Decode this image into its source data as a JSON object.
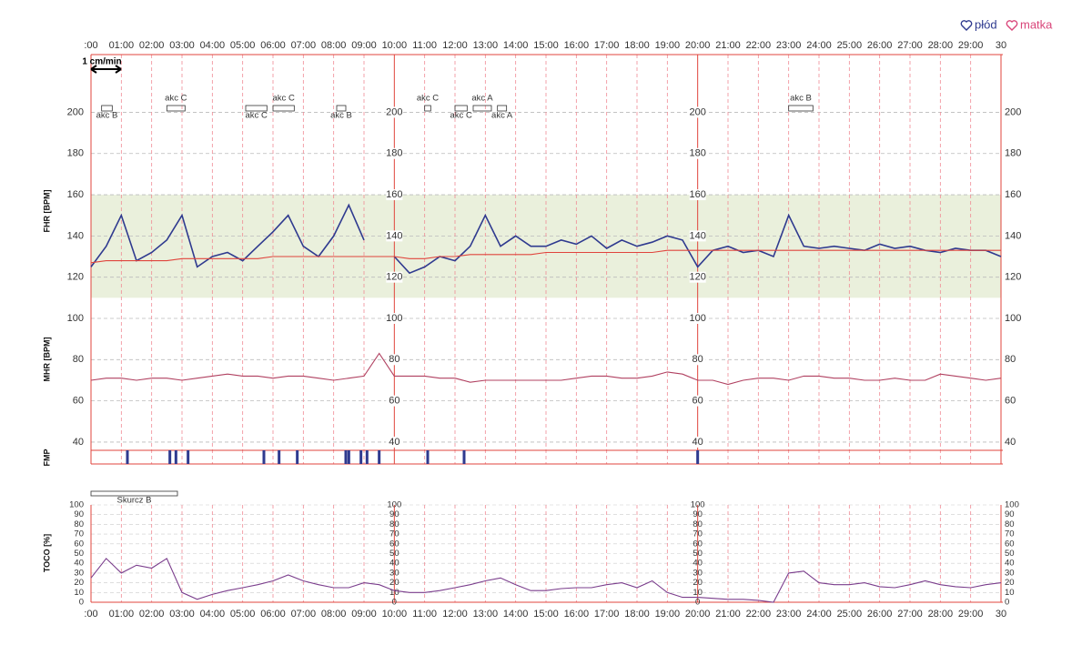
{
  "legend": [
    "płód",
    "matka"
  ],
  "chart_data": [
    {
      "type": "line",
      "ylabels": [
        "FHR [BPM]",
        "MHR [BPM]"
      ],
      "scale_note": "1 cm/min",
      "x": [
        0,
        0.5,
        1,
        1.5,
        2,
        2.5,
        3,
        3.5,
        4,
        4.5,
        5,
        5.5,
        6,
        6.5,
        7,
        7.5,
        8,
        8.5,
        9,
        9.5,
        10,
        10.5,
        11,
        11.5,
        12,
        12.5,
        13,
        13.5,
        14,
        14.5,
        15,
        15.5,
        16,
        16.5,
        17,
        17.5,
        18,
        18.5,
        19,
        19.5,
        20,
        20.5,
        21,
        21.5,
        22,
        22.5,
        23,
        23.5,
        24,
        24.5,
        25,
        25.5,
        26,
        26.5,
        27,
        27.5,
        28,
        28.5,
        29,
        29.5,
        30
      ],
      "xlim": [
        0,
        30
      ],
      "xticks": [
        {
          "value": 0,
          "label": ":00"
        },
        {
          "value": 1,
          "label": "01:00"
        },
        {
          "value": 2,
          "label": "02:00"
        },
        {
          "value": 3,
          "label": "03:00"
        },
        {
          "value": 4,
          "label": "04:00"
        },
        {
          "value": 5,
          "label": "05:00"
        },
        {
          "value": 6,
          "label": "06:00"
        },
        {
          "value": 7,
          "label": "07:00"
        },
        {
          "value": 8,
          "label": "08:00"
        },
        {
          "value": 9,
          "label": "09:00"
        },
        {
          "value": 10,
          "label": "10:00"
        },
        {
          "value": 11,
          "label": "11:00"
        },
        {
          "value": 12,
          "label": "12:00"
        },
        {
          "value": 13,
          "label": "13:00"
        },
        {
          "value": 14,
          "label": "14:00"
        },
        {
          "value": 15,
          "label": "15:00"
        },
        {
          "value": 16,
          "label": "16:00"
        },
        {
          "value": 17,
          "label": "17:00"
        },
        {
          "value": 18,
          "label": "18:00"
        },
        {
          "value": 19,
          "label": "19:00"
        },
        {
          "value": 20,
          "label": "20:00"
        },
        {
          "value": 21,
          "label": "21:00"
        },
        {
          "value": 22,
          "label": "22:00"
        },
        {
          "value": 23,
          "label": "23:00"
        },
        {
          "value": 24,
          "label": "24:00"
        },
        {
          "value": 25,
          "label": "25:00"
        },
        {
          "value": 26,
          "label": "26:00"
        },
        {
          "value": 27,
          "label": "27:00"
        },
        {
          "value": 28,
          "label": "28:00"
        },
        {
          "value": 29,
          "label": "29:00"
        },
        {
          "value": 30,
          "label": "30"
        }
      ],
      "label_columns": [
        0,
        10,
        20,
        30
      ],
      "ylim": [
        36,
        228
      ],
      "yticks": [
        200,
        180,
        160,
        140,
        120,
        100,
        80,
        60,
        40
      ],
      "band": [
        110,
        160
      ],
      "band_color": "#eaf0dc",
      "series": [
        {
          "name": "FHR",
          "color": "#2f3a8f",
          "values": [
            125,
            135,
            150,
            128,
            132,
            138,
            150,
            125,
            130,
            132,
            128,
            135,
            142,
            150,
            135,
            130,
            140,
            155,
            138,
            null,
            130,
            122,
            125,
            130,
            128,
            135,
            150,
            135,
            140,
            135,
            135,
            138,
            136,
            140,
            134,
            138,
            135,
            137,
            140,
            138,
            125,
            133,
            135,
            132,
            133,
            130,
            150,
            135,
            134,
            135,
            134,
            133,
            136,
            134,
            135,
            133,
            132,
            134,
            133,
            133,
            130
          ]
        },
        {
          "name": "FHR baseline",
          "color": "#e0443c",
          "values": [
            127,
            128,
            128,
            128,
            128,
            128,
            129,
            129,
            129,
            129,
            129,
            129,
            130,
            130,
            130,
            130,
            130,
            130,
            130,
            130,
            130,
            129,
            129,
            130,
            130,
            131,
            131,
            131,
            131,
            131,
            132,
            132,
            132,
            132,
            132,
            132,
            132,
            132,
            133,
            133,
            133,
            133,
            133,
            133,
            133,
            133,
            133,
            133,
            133,
            133,
            133,
            133,
            133,
            133,
            133,
            133,
            133,
            133,
            133,
            133,
            133
          ]
        },
        {
          "name": "MHR",
          "color": "#b04060",
          "values": [
            70,
            71,
            71,
            70,
            71,
            71,
            70,
            71,
            72,
            73,
            72,
            72,
            71,
            72,
            72,
            71,
            70,
            71,
            72,
            83,
            72,
            72,
            72,
            71,
            71,
            69,
            70,
            70,
            70,
            70,
            70,
            70,
            71,
            72,
            72,
            71,
            71,
            72,
            74,
            73,
            70,
            70,
            68,
            70,
            71,
            71,
            70,
            72,
            72,
            71,
            71,
            70,
            70,
            71,
            70,
            70,
            73,
            72,
            71,
            70,
            71
          ]
        }
      ],
      "annotations": [
        {
          "label": "akc B",
          "start": 0.35,
          "end": 0.7,
          "pos": "below"
        },
        {
          "label": "akc C",
          "start": 2.5,
          "end": 3.1,
          "pos": "above"
        },
        {
          "label": "akc C",
          "start": 5.1,
          "end": 5.8,
          "pos": "below"
        },
        {
          "label": "akc C",
          "start": 6.0,
          "end": 6.7,
          "pos": "above"
        },
        {
          "label": "akc B",
          "start": 8.1,
          "end": 8.4,
          "pos": "below"
        },
        {
          "label": "akc C",
          "start": 11.0,
          "end": 11.2,
          "pos": "above"
        },
        {
          "label": "akc C",
          "start": 12.0,
          "end": 12.4,
          "pos": "below"
        },
        {
          "label": "akc A",
          "start": 12.6,
          "end": 13.2,
          "pos": "above"
        },
        {
          "label": "akc A",
          "start": 13.4,
          "end": 13.7,
          "pos": "below"
        },
        {
          "label": "akc B",
          "start": 23.0,
          "end": 23.8,
          "pos": "above"
        }
      ]
    },
    {
      "type": "events",
      "ylabel": "FMP",
      "color": "#2f3a8f",
      "times": [
        1.2,
        2.6,
        2.8,
        3.2,
        5.7,
        6.2,
        6.8,
        8.4,
        8.5,
        8.9,
        9.1,
        9.5,
        11.1,
        12.3,
        20.0
      ]
    },
    {
      "type": "line",
      "ylabel": "TOCO [%]",
      "x": [
        0,
        0.5,
        1,
        1.5,
        2,
        2.5,
        3,
        3.5,
        4,
        4.5,
        5,
        5.5,
        6,
        6.5,
        7,
        7.5,
        8,
        8.5,
        9,
        9.5,
        10,
        10.5,
        11,
        11.5,
        12,
        12.5,
        13,
        13.5,
        14,
        14.5,
        15,
        15.5,
        16,
        16.5,
        17,
        17.5,
        18,
        18.5,
        19,
        19.5,
        20,
        20.5,
        21,
        21.5,
        22,
        22.5,
        23,
        23.5,
        24,
        24.5,
        25,
        25.5,
        26,
        26.5,
        27,
        27.5,
        28,
        28.5,
        29,
        29.5,
        30
      ],
      "ylim": [
        0,
        100
      ],
      "yticks": [
        100,
        90,
        80,
        70,
        60,
        50,
        40,
        30,
        20,
        10,
        0
      ],
      "series": [
        {
          "name": "TOCO",
          "color": "#7a3d8c",
          "values": [
            25,
            45,
            30,
            38,
            35,
            45,
            10,
            3,
            8,
            12,
            15,
            18,
            22,
            28,
            22,
            18,
            15,
            15,
            20,
            18,
            12,
            10,
            10,
            12,
            15,
            18,
            22,
            25,
            18,
            12,
            12,
            14,
            15,
            15,
            18,
            20,
            15,
            22,
            10,
            5,
            5,
            4,
            3,
            3,
            2,
            0,
            30,
            32,
            20,
            18,
            18,
            20,
            16,
            15,
            18,
            22,
            18,
            16,
            15,
            18,
            20
          ]
        }
      ],
      "annotations": [
        {
          "label": "Skurcz B",
          "start": 0,
          "end": 2.85
        }
      ]
    }
  ]
}
